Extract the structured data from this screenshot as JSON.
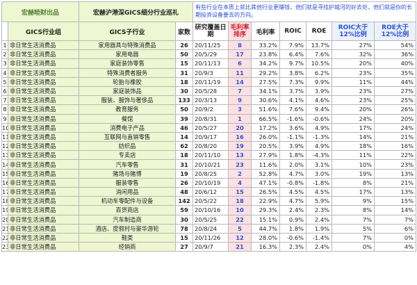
{
  "brand": "宏赫睦财出品",
  "sheet_title": "宏赫沪港深GICS细分行业巡礼",
  "note": "有些行业在本质上就比其他行业更赚钱，他们就是寻找护城河的好去处，他们就是你的长期投资设备要去的方向。",
  "columns": {
    "group": "GICS行业组",
    "sub": "GICS子行业",
    "count": "家数",
    "date": "研究覆盖日期",
    "rank": "毛利率排序",
    "gross": "毛利率",
    "roic": "ROIC",
    "roe": "ROE",
    "roic12": "ROIC大于12%比例",
    "roe12": "ROE大于12%比例"
  },
  "rows": [
    {
      "i": "1",
      "group": "非日常生活消费品",
      "sub": "家用器具与特殊消费品",
      "count": "26",
      "date": "20/11/25",
      "rank": "8",
      "gross": "33.2%",
      "roic": "7.9%",
      "roe": "13.7%",
      "roic12": "27%",
      "roe12": "54%"
    },
    {
      "i": "2",
      "group": "非日常生活消费品",
      "sub": "家用电器",
      "count": "50",
      "date": "20/5/29",
      "rank": "17",
      "gross": "23.8%",
      "roic": "6.4%",
      "roe": "7.6%",
      "roic12": "32%",
      "roe12": "36%"
    },
    {
      "i": "3",
      "group": "非日常生活消费品",
      "sub": "家庭装饰零售",
      "count": "15",
      "date": "20/11/13",
      "rank": "6",
      "gross": "34.2%",
      "roic": "9.7%",
      "roe": "10.5%",
      "roic12": "20%",
      "roe12": "40%"
    },
    {
      "i": "4",
      "group": "非日常生活消费品",
      "sub": "特殊消费者服务",
      "count": "31",
      "date": "20/9/3",
      "rank": "11",
      "gross": "29.2%",
      "roic": "3.8%",
      "roe": "6.2%",
      "roic12": "23%",
      "roe12": "35%"
    },
    {
      "i": "5",
      "group": "非日常生活消费品",
      "sub": "轮胎与橡胶",
      "count": "18",
      "date": "20/11/19",
      "rank": "14",
      "gross": "27.5%",
      "roic": "7.3%",
      "roe": "9.9%",
      "roic12": "11%",
      "roe12": "44%"
    },
    {
      "i": "6",
      "group": "非日常生活消费品",
      "sub": "家庭装饰品",
      "count": "30",
      "date": "20/5/28",
      "rank": "7",
      "gross": "34.1%",
      "roic": "3.7%",
      "roe": "3.9%",
      "roic12": "23%",
      "roe12": "27%"
    },
    {
      "i": "7",
      "group": "非日常生活消费品",
      "sub": "服装、服饰与奢侈品",
      "count": "133",
      "date": "20/3/13",
      "rank": "9",
      "gross": "30.6%",
      "roic": "4.1%",
      "roe": "4.6%",
      "roic12": "23%",
      "roe12": "25%"
    },
    {
      "i": "8",
      "group": "非日常生活消费品",
      "sub": "教育服务",
      "count": "50",
      "date": "20/9/2",
      "rank": "3",
      "gross": "51.6%",
      "roic": "7.6%",
      "roe": "9.4%",
      "roic12": "20%",
      "roe12": "26%"
    },
    {
      "i": "9",
      "group": "非日常生活消费品",
      "sub": "餐馆",
      "count": "39",
      "date": "20/8/31",
      "rank": "1",
      "gross": "66.5%",
      "roic": "-1.6%",
      "roe": "-0.6%",
      "roic12": "24%",
      "roe12": "20%"
    },
    {
      "i": "10",
      "group": "非日常生活消费品",
      "sub": "消费电子产品",
      "count": "46",
      "date": "20/5/27",
      "rank": "20",
      "gross": "17.2%",
      "roic": "3.6%",
      "roe": "4.9%",
      "roic12": "17%",
      "roe12": "24%"
    },
    {
      "i": "11",
      "group": "非日常生活消费品",
      "sub": "互联网与直销零售",
      "count": "14",
      "date": "20/9/17",
      "rank": "16",
      "gross": "26.0%",
      "roic": "-1.1%",
      "roe": "-1.3%",
      "roic12": "14%",
      "roe12": "21%"
    },
    {
      "i": "12",
      "group": "非日常生活消费品",
      "sub": "纺织品",
      "count": "62",
      "date": "20/8/20",
      "rank": "19",
      "gross": "20.5%",
      "roic": "3.9%",
      "roe": "4.9%",
      "roic12": "18%",
      "roe12": "16%"
    },
    {
      "i": "13",
      "group": "非日常生活消费品",
      "sub": "专卖店",
      "count": "18",
      "date": "20/11/10",
      "rank": "13",
      "gross": "27.9%",
      "roic": "1.8%",
      "roe": "-4.3%",
      "roic12": "11%",
      "roe12": "22%"
    },
    {
      "i": "14",
      "group": "非日常生活消费品",
      "sub": "汽车零售",
      "count": "31",
      "date": "20/10/21",
      "rank": "23",
      "gross": "11.6%",
      "roic": "2.0%",
      "roe": "3.1%",
      "roic12": "10%",
      "roe12": "23%"
    },
    {
      "i": "15",
      "group": "非日常生活消费品",
      "sub": "赌场与赌博",
      "count": "19",
      "date": "20/8/25",
      "rank": "2",
      "gross": "52.8%",
      "roic": "4.7%",
      "roe": "3.0%",
      "roic12": "19%",
      "roe12": "13%"
    },
    {
      "i": "16",
      "group": "非日常生活消费品",
      "sub": "服装零售",
      "count": "26",
      "date": "20/10/19",
      "rank": "4",
      "gross": "47.1%",
      "roic": "-0.8%",
      "roe": "-1.8%",
      "roic12": "8%",
      "roe12": "21%"
    },
    {
      "i": "17",
      "group": "非日常生活消费品",
      "sub": "消闲用品",
      "count": "48",
      "date": "20/6/12",
      "rank": "15",
      "gross": "26.5%",
      "roic": "4.5%",
      "roe": "4.5%",
      "roic12": "17%",
      "roe12": "13%"
    },
    {
      "i": "18",
      "group": "非日常生活消费品",
      "sub": "机动车零配件与设备",
      "count": "142",
      "date": "20/5/22",
      "rank": "18",
      "gross": "22.9%",
      "roic": "4.7%",
      "roe": "5.9%",
      "roic12": "9%",
      "roe12": "15%"
    },
    {
      "i": "19",
      "group": "非日常生活消费品",
      "sub": "百货商店",
      "count": "59",
      "date": "20/10/16",
      "rank": "10",
      "gross": "29.3%",
      "roic": "2.4%",
      "roe": "2.3%",
      "roic12": "8%",
      "roe12": "14%"
    },
    {
      "i": "20",
      "group": "非日常生活消费品",
      "sub": "汽车制造商",
      "count": "30",
      "date": "20/5/25",
      "rank": "22",
      "gross": "15.1%",
      "roic": "0.9%",
      "roe": "2.4%",
      "roic12": "7%",
      "roe12": "7%"
    },
    {
      "i": "21",
      "group": "非日常生活消费品",
      "sub": "酒店、度假村与豪华游轮",
      "count": "78",
      "date": "20/8/24",
      "rank": "5",
      "gross": "44.7%",
      "roic": "1.8%",
      "roe": "1.9%",
      "roic12": "5%",
      "roe12": "6%"
    },
    {
      "i": "22",
      "group": "非日常生活消费品",
      "sub": "鞋类",
      "count": "15",
      "date": "20/11/26",
      "rank": "12",
      "gross": "28.0%",
      "roic": "-0.6%",
      "roe": "-1.4%",
      "roic12": "7%",
      "roe12": "0%"
    },
    {
      "i": "23",
      "group": "非日常生活消费品",
      "sub": "经销商",
      "count": "27",
      "date": "20/9/7",
      "rank": "21",
      "gross": "16.3%",
      "roic": "2.3%",
      "roe": "2.4%",
      "roic12": "0%",
      "roe12": "4%"
    }
  ]
}
